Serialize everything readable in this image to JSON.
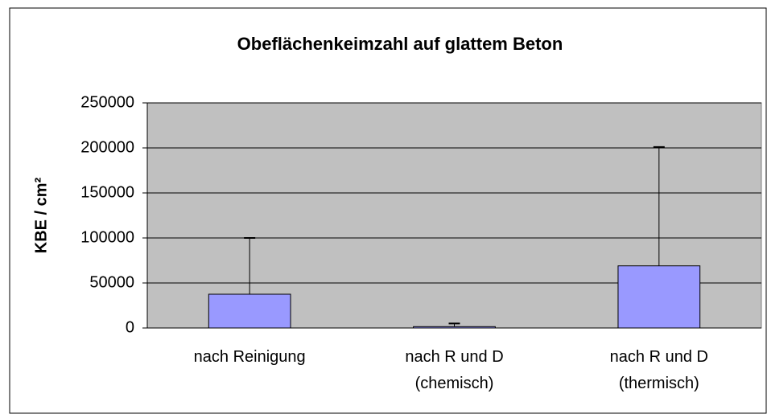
{
  "chart_data": {
    "type": "bar",
    "title": "Obeflächenkeimzahl auf glattem Beton",
    "y_label": "KBE / cm²",
    "categories": [
      [
        "nach Reinigung"
      ],
      [
        "nach R und D",
        "(chemisch)"
      ],
      [
        "nach R und D",
        "(thermisch)"
      ]
    ],
    "values": [
      37500,
      1500,
      69000
    ],
    "errors": [
      62500,
      3500,
      132000
    ],
    "color": "#9999ff",
    "plot_background": "#c0c0c0",
    "ylim": [
      0,
      250000
    ],
    "yticks": [
      0,
      50000,
      100000,
      150000,
      200000,
      250000
    ],
    "grid": true
  }
}
